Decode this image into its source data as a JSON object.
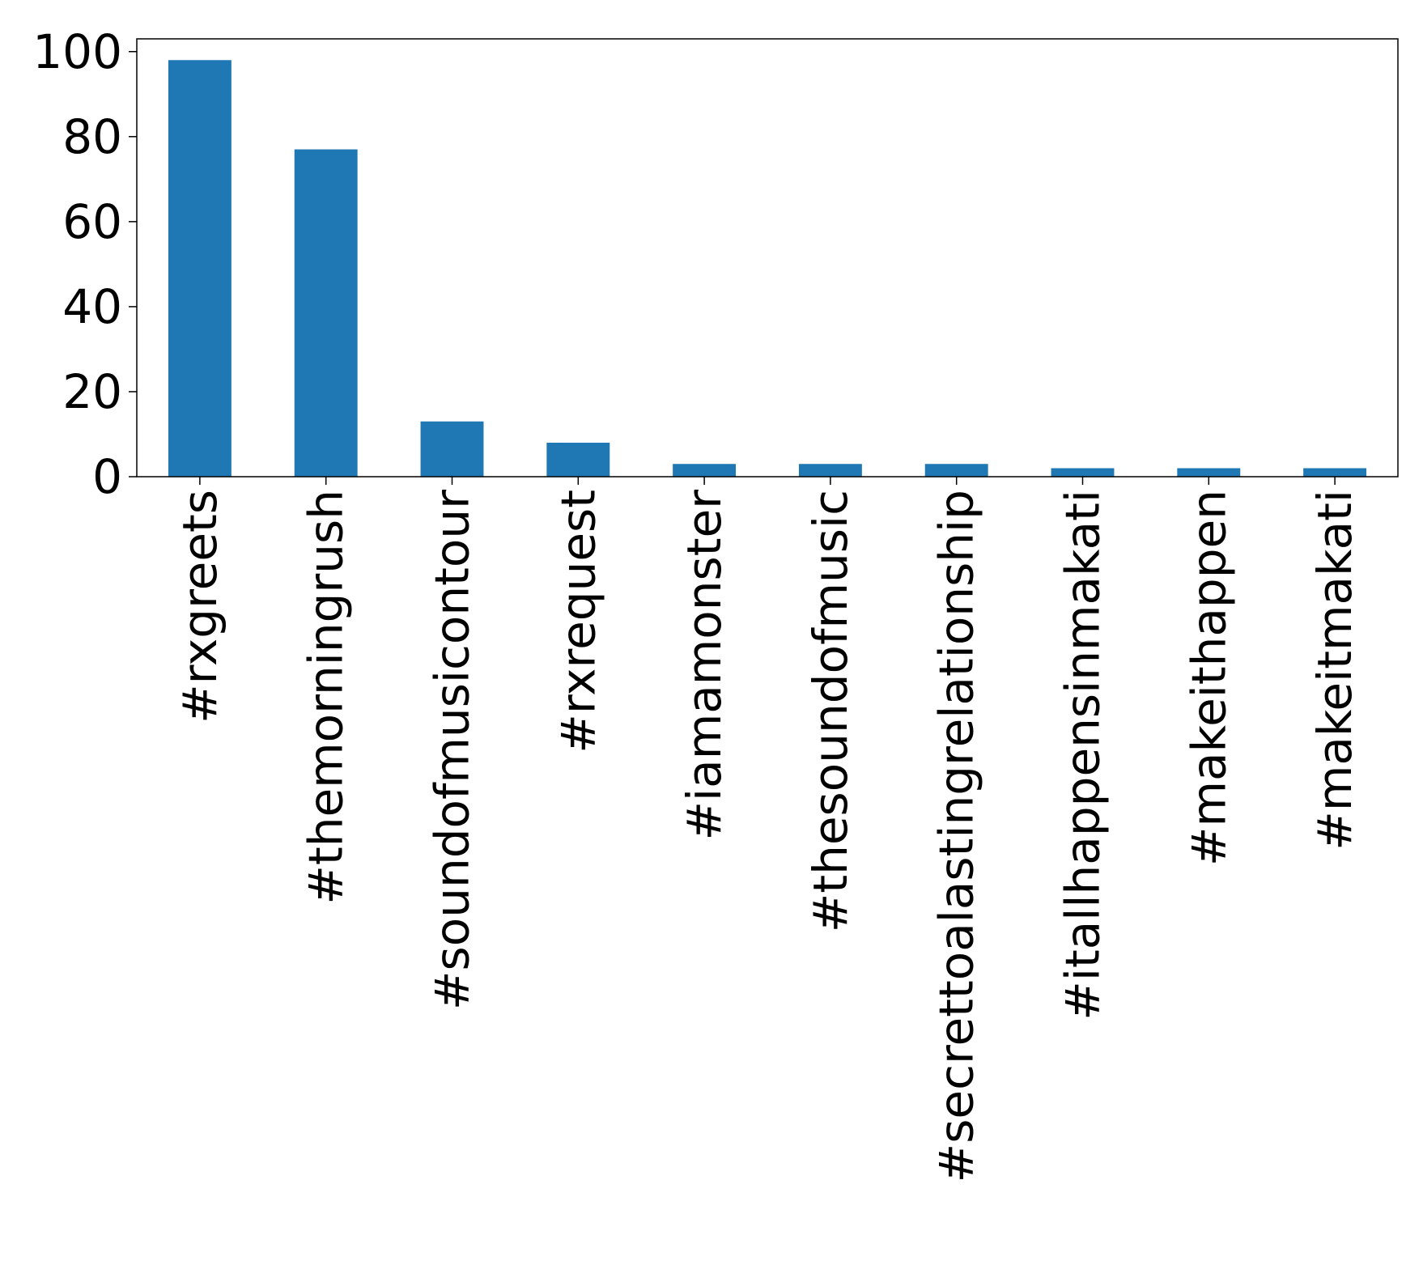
{
  "chart_data": {
    "type": "bar",
    "title": "",
    "xlabel": "",
    "ylabel": "",
    "categories": [
      "#rxgreets",
      "#themorningrush",
      "#soundofmusicontour",
      "#rxrequest",
      "#iamamonster",
      "#thesoundofmusic",
      "#secrettoalastingrelationship",
      "#itallhappensinmakati",
      "#makeithappen",
      "#makeitmakati"
    ],
    "values": [
      98,
      77,
      13,
      8,
      3,
      3,
      3,
      2,
      2,
      2
    ],
    "ylim": [
      0,
      103
    ],
    "yticks": [
      0,
      20,
      40,
      60,
      80,
      100
    ],
    "ytick_labels": [
      "0",
      "20",
      "40",
      "60",
      "80",
      "100"
    ],
    "grid": false,
    "legend": "none",
    "bar_color": "#1f77b4"
  }
}
